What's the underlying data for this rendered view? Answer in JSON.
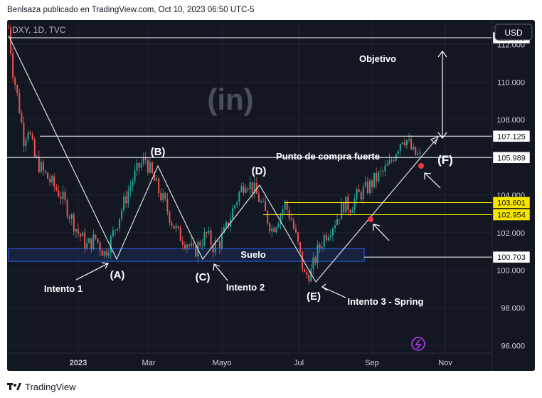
{
  "header": {
    "publisher": "Benlsaza publicado en TradingView.com, Oct 10, 2023 06:50 UTC-5"
  },
  "symbol_label": "DXY, 1D, TVC",
  "currency_button": "USD",
  "footer": {
    "brand": "TradingView"
  },
  "watermark": "(in)",
  "chart_data": {
    "type": "candlestick",
    "symbol": "DXY",
    "interval": "1D",
    "source": "TVC",
    "currency": "USD",
    "y_ticks": [
      "112.000",
      "110.000",
      "108.000",
      "106.000",
      "104.000",
      "102.000",
      "100.000",
      "98.000",
      "96.000"
    ],
    "ylim": [
      95.6,
      113.3
    ],
    "x_ticks": [
      "2023",
      "Mar",
      "Mayo",
      "Jul",
      "Sep",
      "Nov"
    ],
    "price_path": [
      [
        0,
        112.9
      ],
      [
        2,
        110.6
      ],
      [
        5,
        108.6
      ],
      [
        7,
        107.0
      ],
      [
        9,
        107.6
      ],
      [
        12,
        106.0
      ],
      [
        16,
        105.2
      ],
      [
        20,
        104.6
      ],
      [
        24,
        104.0
      ],
      [
        28,
        103.0
      ],
      [
        32,
        102.0
      ],
      [
        36,
        101.3
      ],
      [
        40,
        101.7
      ],
      [
        44,
        100.9
      ],
      [
        47,
        101.6
      ],
      [
        50,
        102.6
      ],
      [
        54,
        103.9
      ],
      [
        57,
        104.8
      ],
      [
        60,
        105.5
      ],
      [
        63,
        105.9
      ],
      [
        66,
        105.0
      ],
      [
        69,
        104.2
      ],
      [
        72,
        103.5
      ],
      [
        75,
        102.6
      ],
      [
        78,
        101.9
      ],
      [
        82,
        101.5
      ],
      [
        85,
        100.9
      ],
      [
        88,
        101.5
      ],
      [
        91,
        101.9
      ],
      [
        94,
        101.3
      ],
      [
        97,
        101.5
      ],
      [
        100,
        102.2
      ],
      [
        103,
        103.2
      ],
      [
        106,
        104.1
      ],
      [
        109,
        104.8
      ],
      [
        112,
        104.4
      ],
      [
        115,
        103.8
      ],
      [
        118,
        103.0
      ],
      [
        121,
        102.2
      ],
      [
        124,
        102.8
      ],
      [
        127,
        103.5
      ],
      [
        130,
        102.7
      ],
      [
        133,
        101.3
      ],
      [
        136,
        99.7
      ],
      [
        139,
        99.9
      ],
      [
        142,
        101.0
      ],
      [
        145,
        101.8
      ],
      [
        148,
        102.3
      ],
      [
        151,
        102.8
      ],
      [
        154,
        103.5
      ],
      [
        157,
        103.4
      ],
      [
        160,
        103.9
      ],
      [
        163,
        104.2
      ],
      [
        166,
        104.5
      ],
      [
        169,
        104.9
      ],
      [
        172,
        105.2
      ],
      [
        175,
        105.6
      ],
      [
        178,
        106.4
      ],
      [
        181,
        107.1
      ],
      [
        183,
        106.9
      ],
      [
        186,
        106.2
      ],
      [
        189,
        106.0
      ]
    ],
    "levels": [
      {
        "label": "112.353",
        "value": 112.353,
        "color": "#ffffff"
      },
      {
        "label": "107.125",
        "value": 107.125,
        "color": "#ffffff"
      },
      {
        "label": "105.989",
        "value": 105.989,
        "color": "#ffffff"
      },
      {
        "label": "103.601",
        "value": 103.601,
        "color": "#f7e600"
      },
      {
        "label": "102.954",
        "value": 102.954,
        "color": "#f7e600"
      },
      {
        "label": "100.703",
        "value": 100.703,
        "color": "#ffffff"
      }
    ],
    "annotations": {
      "objetivo": "Objetivo",
      "punto_compra": "Punto de compra fuerte",
      "suelo": "Suelo",
      "wave_a": "(A)",
      "wave_b": "(B)",
      "wave_c": "(C)",
      "wave_d": "(D)",
      "wave_e": "(E)",
      "wave_f": "(F)",
      "intento1": "Intento 1",
      "intento2": "Intento 2",
      "intento3": "Intento 3 - Spring"
    },
    "colors": {
      "up": "#26a69a",
      "down": "#ef5350",
      "background": "#131722",
      "suelo_box": "#2962ff",
      "marker": "#f23645"
    }
  }
}
